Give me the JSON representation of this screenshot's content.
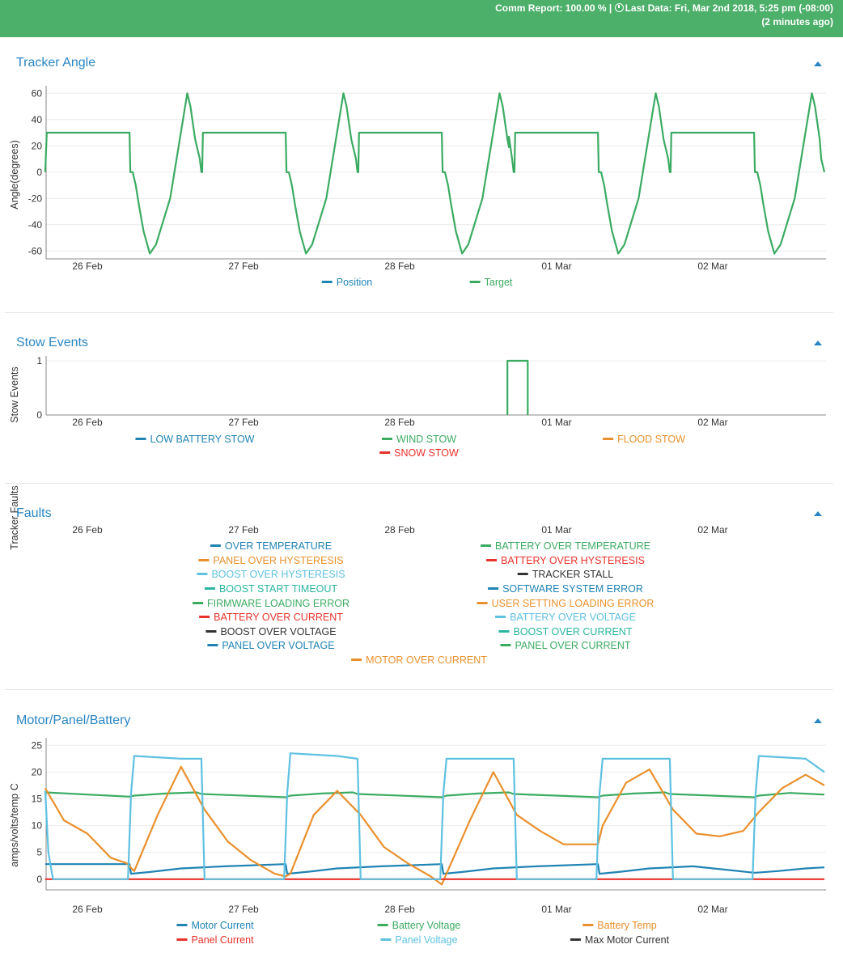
{
  "header": {
    "comm_label": "Comm Report:",
    "comm_value": "100.00 %",
    "separator": "|",
    "last_data_label": "Last Data:",
    "last_data_value": "Fri, Mar 2nd 2018, 5:25 pm (-08:00)",
    "ago": "(2 minutes ago)"
  },
  "colors": {
    "header_bg": "#4caf6a",
    "title": "#2a86c3",
    "blue": "#1f83b4",
    "green": "#3bab62",
    "orange": "#e9902c",
    "red": "#e8322b",
    "lightblue": "#5ec1e0",
    "black": "#333333",
    "teal": "#2ab5a0"
  },
  "x_axis": {
    "dates": [
      "26 Feb",
      "27 Feb",
      "28 Feb",
      "01 Mar",
      "02 Mar"
    ]
  },
  "panels": {
    "tracker": {
      "title": "Tracker Angle"
    },
    "stow": {
      "title": "Stow Events"
    },
    "faults": {
      "title": "Faults"
    },
    "mpb": {
      "title": "Motor/Panel/Battery"
    }
  },
  "chart_data": [
    {
      "type": "line",
      "title": "Tracker Angle",
      "ylabel": "Angle(degrees)",
      "ylim": [
        -66,
        62
      ],
      "yticks": [
        60,
        40,
        20,
        0,
        -20,
        -40,
        -60
      ],
      "x_ticks": [
        "26 Feb",
        "27 Feb",
        "28 Feb",
        "01 Mar",
        "02 Mar"
      ],
      "x_unit": "days",
      "x_range": [
        -0.27,
        4.72
      ],
      "series": [
        {
          "name": "Position",
          "color": "#1f83b4"
        },
        {
          "name": "Target",
          "color": "#3bab62",
          "x": [
            -0.27,
            -0.26,
            -0.255,
            0.27,
            0.275,
            0.29,
            0.31,
            0.33,
            0.36,
            0.4,
            0.44,
            0.53,
            0.64,
            0.66,
            0.69,
            0.72,
            0.73,
            0.735,
            0.74,
            1.27,
            1.275,
            1.29,
            1.31,
            1.33,
            1.36,
            1.4,
            1.44,
            1.53,
            1.64,
            1.66,
            1.69,
            1.72,
            1.73,
            1.735,
            1.74,
            2.27,
            2.275,
            2.29,
            2.31,
            2.33,
            2.36,
            2.4,
            2.44,
            2.53,
            2.64,
            2.66,
            2.69,
            2.7,
            2.7,
            2.72,
            2.73,
            2.735,
            2.74,
            3.27,
            3.275,
            3.29,
            3.31,
            3.33,
            3.36,
            3.4,
            3.44,
            3.53,
            3.64,
            3.66,
            3.69,
            3.72,
            3.73,
            3.735,
            3.74,
            4.27,
            4.275,
            4.29,
            4.31,
            4.33,
            4.36,
            4.4,
            4.44,
            4.53,
            4.64,
            4.66,
            4.69,
            4.7,
            4.72
          ],
          "y": [
            0,
            30,
            30,
            30,
            0,
            0,
            -10,
            -25,
            -45,
            -62,
            -55,
            -20,
            60,
            50,
            25,
            10,
            0,
            0,
            30,
            30,
            0,
            0,
            -10,
            -25,
            -45,
            -62,
            -55,
            -20,
            60,
            50,
            25,
            10,
            0,
            0,
            30,
            30,
            0,
            0,
            -10,
            -25,
            -45,
            -62,
            -55,
            -20,
            60,
            50,
            25,
            19,
            27,
            10,
            0,
            0,
            30,
            30,
            0,
            0,
            -10,
            -25,
            -45,
            -62,
            -55,
            -20,
            60,
            50,
            25,
            10,
            0,
            0,
            30,
            30,
            0,
            0,
            -10,
            -25,
            -45,
            -62,
            -55,
            -20,
            60,
            50,
            25,
            10,
            0
          ]
        }
      ]
    },
    {
      "type": "line",
      "title": "Stow Events",
      "ylabel": "Stow Events",
      "ylim": [
        0,
        1
      ],
      "yticks": [
        1,
        0
      ],
      "x_ticks": [
        "26 Feb",
        "27 Feb",
        "28 Feb",
        "01 Mar",
        "02 Mar"
      ],
      "x_range": [
        -0.27,
        4.72
      ],
      "series": [
        {
          "name": "LOW BATTERY STOW",
          "color": "#1f83b4"
        },
        {
          "name": "WIND STOW",
          "color": "#3bab62",
          "x": [
            2.69,
            2.69,
            2.82,
            2.82
          ],
          "y": [
            0,
            1,
            1,
            0
          ]
        },
        {
          "name": "FLOOD STOW",
          "color": "#e9902c"
        },
        {
          "name": "SNOW STOW",
          "color": "#e8322b"
        }
      ]
    },
    {
      "type": "line",
      "title": "Faults",
      "ylabel": "Tracker Faults",
      "x_ticks": [
        "26 Feb",
        "27 Feb",
        "28 Feb",
        "01 Mar",
        "02 Mar"
      ],
      "series": [
        {
          "name": "OVER TEMPERATURE",
          "color": "#1f83b4"
        },
        {
          "name": "BATTERY OVER TEMPERATURE",
          "color": "#3bab62"
        },
        {
          "name": "PANEL OVER HYSTERESIS",
          "color": "#e9902c"
        },
        {
          "name": "BATTERY OVER HYSTERESIS",
          "color": "#e8322b"
        },
        {
          "name": "BOOST OVER HYSTERESIS",
          "color": "#5ec1e0"
        },
        {
          "name": "TRACKER STALL",
          "color": "#333333"
        },
        {
          "name": "BOOST START TIMEOUT",
          "color": "#2ab5a0"
        },
        {
          "name": "SOFTWARE SYSTEM ERROR",
          "color": "#1f83b4"
        },
        {
          "name": "FIRMWARE LOADING ERROR",
          "color": "#3bab62"
        },
        {
          "name": "USER SETTING LOADING ERROR",
          "color": "#e9902c"
        },
        {
          "name": "BATTERY OVER CURRENT",
          "color": "#e8322b"
        },
        {
          "name": "BATTERY OVER VOLTAGE",
          "color": "#5ec1e0"
        },
        {
          "name": "BOOST OVER VOLTAGE",
          "color": "#333333"
        },
        {
          "name": "BOOST OVER CURRENT",
          "color": "#2ab5a0"
        },
        {
          "name": "PANEL OVER VOLTAGE",
          "color": "#1f83b4"
        },
        {
          "name": "PANEL OVER CURRENT",
          "color": "#3bab62"
        },
        {
          "name": "MOTOR OVER CURRENT",
          "color": "#e9902c"
        }
      ]
    },
    {
      "type": "line",
      "title": "Motor/Panel/Battery",
      "ylabel": "amps/volts/temp C",
      "ylim": [
        -2,
        25.5
      ],
      "yticks": [
        25,
        20,
        15,
        10,
        5,
        0
      ],
      "x_ticks": [
        "26 Feb",
        "27 Feb",
        "28 Feb",
        "01 Mar",
        "02 Mar"
      ],
      "x_range": [
        -0.27,
        4.72
      ],
      "series": [
        {
          "name": "Motor Current",
          "color": "#1f83b4",
          "x": [
            -0.27,
            0.27,
            0.28,
            0.42,
            0.6,
            0.88,
            1.27,
            1.28,
            1.42,
            1.6,
            1.88,
            2.27,
            2.28,
            2.42,
            2.6,
            2.88,
            3.27,
            3.28,
            3.42,
            3.6,
            3.88,
            4.27,
            4.28,
            4.42,
            4.6,
            4.72
          ],
          "y": [
            2.8,
            2.8,
            1.0,
            1.4,
            2.0,
            2.4,
            2.8,
            1.0,
            1.4,
            2.0,
            2.4,
            2.8,
            1.0,
            1.4,
            2.0,
            2.4,
            2.8,
            1.0,
            1.4,
            2.0,
            2.4,
            1.2,
            1.2,
            1.5,
            2.0,
            2.2
          ]
        },
        {
          "name": "Battery Voltage",
          "color": "#3bab62",
          "x": [
            -0.27,
            0.27,
            0.3,
            0.5,
            0.7,
            0.73,
            1.27,
            1.3,
            1.5,
            1.7,
            1.73,
            2.27,
            2.3,
            2.5,
            2.7,
            2.73,
            3.27,
            3.3,
            3.5,
            3.7,
            3.73,
            4.27,
            4.3,
            4.5,
            4.72
          ],
          "y": [
            16.2,
            15.4,
            15.6,
            16.0,
            16.2,
            15.9,
            15.3,
            15.6,
            16.0,
            16.2,
            15.9,
            15.3,
            15.6,
            16.0,
            16.2,
            15.9,
            15.3,
            15.6,
            16.0,
            16.2,
            15.9,
            15.3,
            15.6,
            16.1,
            15.8
          ]
        },
        {
          "name": "Battery Temp",
          "color": "#e9902c",
          "x": [
            -0.27,
            -0.15,
            0.0,
            0.15,
            0.25,
            0.3,
            0.45,
            0.6,
            0.75,
            0.9,
            1.05,
            1.2,
            1.27,
            1.3,
            1.45,
            1.6,
            1.75,
            1.9,
            2.05,
            2.2,
            2.27,
            2.3,
            2.45,
            2.6,
            2.75,
            2.9,
            3.05,
            3.2,
            3.27,
            3.3,
            3.45,
            3.6,
            3.75,
            3.9,
            4.05,
            4.2,
            4.3,
            4.45,
            4.6,
            4.72
          ],
          "y": [
            17.0,
            11.0,
            8.5,
            4.0,
            3.0,
            1.5,
            12.0,
            21.0,
            13.0,
            7.0,
            3.5,
            1.0,
            0.5,
            1.0,
            12.0,
            16.5,
            12.0,
            6.0,
            3.0,
            0.5,
            -1.0,
            1.0,
            11.0,
            20.0,
            12.0,
            9.0,
            6.5,
            6.5,
            6.5,
            10.0,
            18.0,
            20.5,
            13.0,
            8.5,
            8.0,
            9.0,
            12.5,
            17.0,
            19.5,
            17.5
          ]
        },
        {
          "name": "Panel Current",
          "color": "#e8322b",
          "x": [
            -0.27,
            4.72
          ],
          "y": [
            0,
            0
          ]
        },
        {
          "name": "Panel Voltage",
          "color": "#5ec1e0",
          "x": [
            -0.27,
            -0.25,
            -0.22,
            0.26,
            0.28,
            0.3,
            0.6,
            0.73,
            0.75,
            1.26,
            1.28,
            1.3,
            1.6,
            1.73,
            1.75,
            2.26,
            2.28,
            2.3,
            2.6,
            2.73,
            2.75,
            3.26,
            3.28,
            3.3,
            3.6,
            3.73,
            3.75,
            4.26,
            4.28,
            4.3,
            4.6,
            4.72
          ],
          "y": [
            16.5,
            5.0,
            0.0,
            0.0,
            16.0,
            23.0,
            22.5,
            22.5,
            0.0,
            0.0,
            16.0,
            23.5,
            23.0,
            22.5,
            0.0,
            0.0,
            16.0,
            22.5,
            22.5,
            22.5,
            0.0,
            0.0,
            16.0,
            22.5,
            22.5,
            22.5,
            0.0,
            0.0,
            16.0,
            23.0,
            22.5,
            20.0
          ]
        },
        {
          "name": "Max Motor Current",
          "color": "#333333"
        }
      ]
    }
  ]
}
